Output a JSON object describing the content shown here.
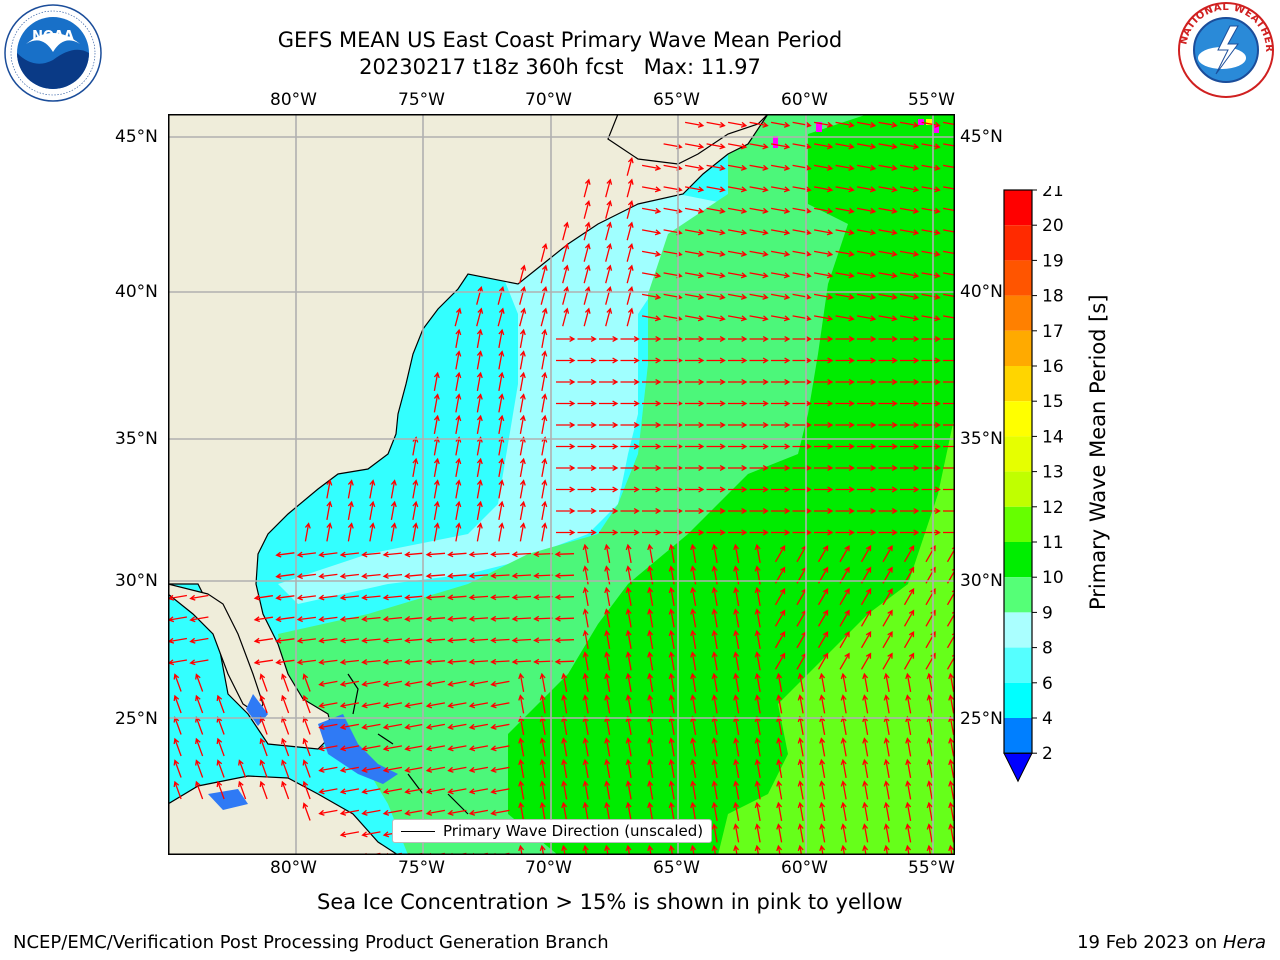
{
  "title": {
    "line1": "GEFS MEAN US East Coast Primary Wave Mean Period",
    "line2": "20230217 t18z 360h fcst   Max: 11.97"
  },
  "logos": {
    "left": "NOAA",
    "right": "NATIONAL WEATHER SERVICE"
  },
  "map": {
    "lon_labels": [
      "80°W",
      "75°W",
      "70°W",
      "65°W",
      "60°W",
      "55°W"
    ],
    "lat_labels": [
      "45°N",
      "40°N",
      "35°N",
      "30°N",
      "25°N"
    ],
    "legend_label": "Primary Wave Direction (unscaled)",
    "colors": {
      "land": "#efedda",
      "ocean_cyan": "#33ffff",
      "ocean_light": "#a0ffff",
      "ocean_mint": "#4cf77a",
      "ocean_green": "#00ec00",
      "ocean_lime": "#66ff1a",
      "ocean_blue": "#2f7af5",
      "arrow": "#ff0000",
      "grid": "#b0b0b0"
    }
  },
  "colorbar": {
    "label": "Primary Wave Mean Period [s]",
    "ticks": [
      "21",
      "20",
      "19",
      "18",
      "17",
      "16",
      "15",
      "14",
      "13",
      "12",
      "11",
      "10",
      "9",
      "8",
      "6",
      "4",
      "2"
    ],
    "colors": [
      "#ff0000",
      "#ff2a00",
      "#ff5500",
      "#ff8000",
      "#ffaa00",
      "#ffd500",
      "#ffff00",
      "#e6ff00",
      "#c0ff00",
      "#66ff00",
      "#00ee00",
      "#55ff77",
      "#aaffff",
      "#55ffff",
      "#00ffff",
      "#007fff"
    ],
    "extend_color": "#0000ff"
  },
  "note": "Sea Ice Concentration > 15% is shown in pink to yellow",
  "footer": {
    "left": "NCEP/EMC/Verification Post Processing Product Generation Branch",
    "date": "19 Feb 2023 on ",
    "host": "Hera"
  }
}
